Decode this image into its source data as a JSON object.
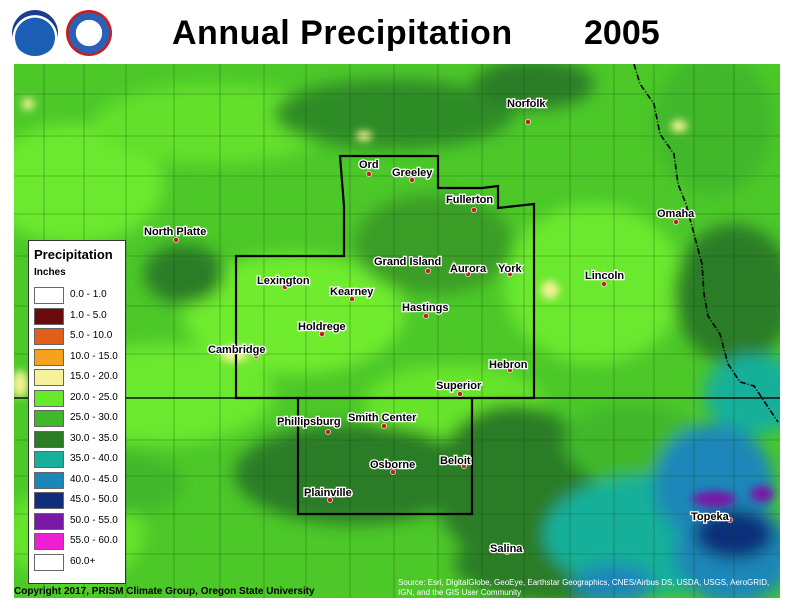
{
  "header": {
    "title": "Annual Precipitation",
    "year": "2005",
    "logos": [
      {
        "name": "NOAA",
        "icon": "noaa-logo"
      },
      {
        "name": "National Weather Service",
        "icon": "nws-logo"
      }
    ]
  },
  "legend": {
    "title": "Precipitation",
    "units": "Inches",
    "bins": [
      {
        "label": "0.0 - 1.0",
        "color": "#ffffff"
      },
      {
        "label": "1.0 - 5.0",
        "color": "#6b0a0a"
      },
      {
        "label": "5.0 - 10.0",
        "color": "#e0601a"
      },
      {
        "label": "10.0 - 15.0",
        "color": "#f7a21c"
      },
      {
        "label": "15.0 - 20.0",
        "color": "#f7f29a"
      },
      {
        "label": "20.0 - 25.0",
        "color": "#66ea2a"
      },
      {
        "label": "25.0 - 30.0",
        "color": "#3fb829"
      },
      {
        "label": "30.0 - 35.0",
        "color": "#2a7d25"
      },
      {
        "label": "35.0 - 40.0",
        "color": "#18b09a"
      },
      {
        "label": "40.0 - 45.0",
        "color": "#1b87b8"
      },
      {
        "label": "45.0 - 50.0",
        "color": "#102f7a"
      },
      {
        "label": "50.0 - 55.0",
        "color": "#7a18a6"
      },
      {
        "label": "55.0 - 60.0",
        "color": "#ee1fd2"
      },
      {
        "label": "60.0+",
        "color": "#ffffff"
      }
    ]
  },
  "cities": [
    {
      "name": "Norfolk"
    },
    {
      "name": "Ord"
    },
    {
      "name": "Greeley"
    },
    {
      "name": "Fullerton"
    },
    {
      "name": "Omaha"
    },
    {
      "name": "North Platte"
    },
    {
      "name": "Grand Island"
    },
    {
      "name": "Aurora"
    },
    {
      "name": "York"
    },
    {
      "name": "Lincoln"
    },
    {
      "name": "Lexington"
    },
    {
      "name": "Kearney"
    },
    {
      "name": "Hastings"
    },
    {
      "name": "Holdrege"
    },
    {
      "name": "Cambridge"
    },
    {
      "name": "Hebron"
    },
    {
      "name": "Superior"
    },
    {
      "name": "Phillipsburg"
    },
    {
      "name": "Smith Center"
    },
    {
      "name": "Beloit"
    },
    {
      "name": "Osborne"
    },
    {
      "name": "Plainville"
    },
    {
      "name": "Topeka"
    },
    {
      "name": "Salina"
    }
  ],
  "footer": {
    "copyright": "Copyright 2017, PRISM Climate Group, Oregon State University",
    "source": "Source: Esri, DigitalGlobe, GeoEye, Earthstar Geographics, CNES/Airbus DS, USDA, USGS, AeroGRID, IGN, and the GIS User Community"
  }
}
